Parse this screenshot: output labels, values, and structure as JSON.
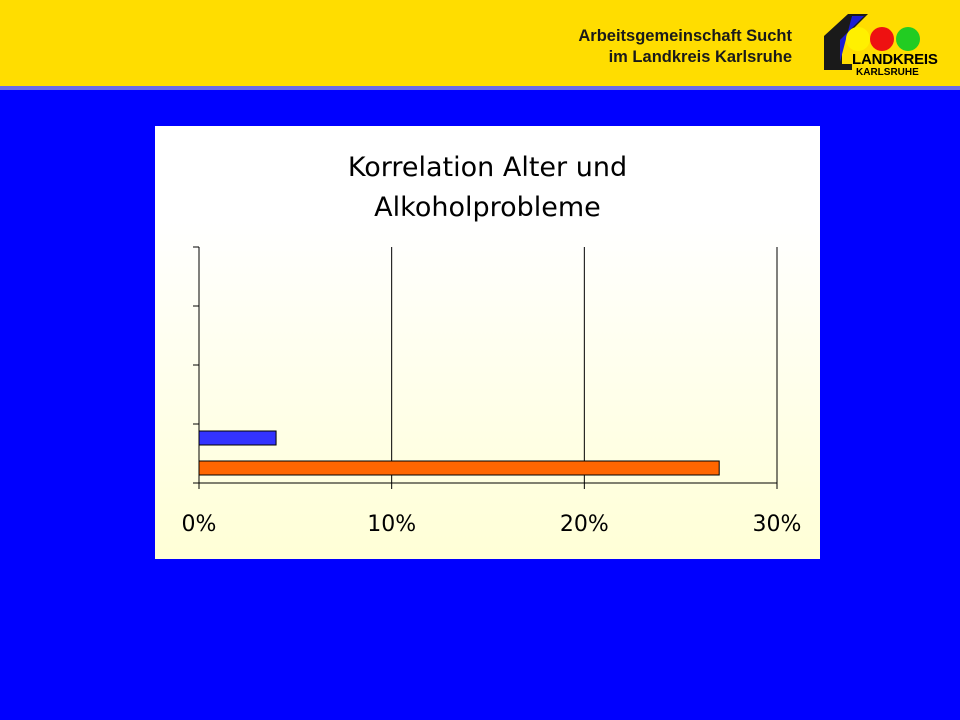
{
  "header": {
    "org_line1": "Arbeitsgemeinschaft Sucht",
    "org_line2": "im Landkreis Karlsruhe",
    "logo_line1": "LANDKREIS",
    "logo_line2": "KARLSRUHE",
    "colors": {
      "bar": "#FFDD00",
      "stripe": "#6B6BE8",
      "background": "#0000FF"
    }
  },
  "chart_data": {
    "type": "bar",
    "orientation": "horizontal",
    "title_lines": [
      "Korrelation Alter und",
      "Alkoholprobleme"
    ],
    "categories": [
      "",
      "",
      "",
      ""
    ],
    "series": [
      {
        "color": "#FF6600",
        "values": [
          27,
          0,
          0,
          0
        ]
      },
      {
        "color": "#3333FF",
        "values": [
          4,
          0,
          0,
          0
        ]
      }
    ],
    "x_ticks": [
      0,
      10,
      20,
      30
    ],
    "x_tick_labels": [
      "0%",
      "10%",
      "20%",
      "30%"
    ],
    "xlim": [
      0,
      30
    ],
    "grid": "vertical",
    "legend": "none",
    "xlabel": "",
    "ylabel": ""
  }
}
